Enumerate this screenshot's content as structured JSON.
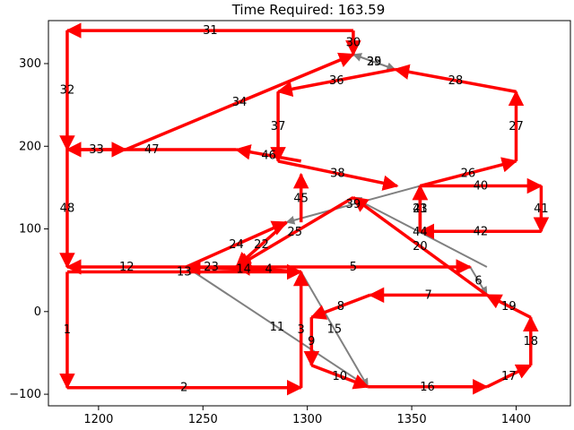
{
  "chart_data": {
    "type": "line",
    "title": "Time Required: 163.59",
    "xlabel": "",
    "ylabel": "",
    "xlim": [
      1176,
      1426
    ],
    "ylim": [
      -114,
      352
    ],
    "xticks": [
      1200,
      1250,
      1300,
      1350,
      1400
    ],
    "yticks": [
      -100,
      0,
      100,
      200,
      300
    ],
    "grid": false,
    "colors": {
      "route": "#ff0000",
      "transit": "#808080"
    },
    "edges": [
      {
        "label": "1",
        "from": [
          1185,
          48
        ],
        "to": [
          1185,
          -92
        ],
        "kind": "route"
      },
      {
        "label": "2",
        "from": [
          1185,
          -92
        ],
        "to": [
          1297,
          -92
        ],
        "kind": "route"
      },
      {
        "label": "3",
        "from": [
          1297,
          -92
        ],
        "to": [
          1297,
          48
        ],
        "kind": "route"
      },
      {
        "label": "4",
        "from": [
          1297,
          48
        ],
        "to": [
          1266,
          54
        ],
        "kind": "route"
      },
      {
        "label": "5",
        "from": [
          1266,
          54
        ],
        "to": [
          1378,
          54
        ],
        "kind": "route"
      },
      {
        "label": "6",
        "from": [
          1378,
          54
        ],
        "to": [
          1386,
          20
        ],
        "kind": "transit"
      },
      {
        "label": "7",
        "from": [
          1386,
          20
        ],
        "to": [
          1330,
          20
        ],
        "kind": "route"
      },
      {
        "label": "8",
        "from": [
          1330,
          20
        ],
        "to": [
          1302,
          -7
        ],
        "kind": "route"
      },
      {
        "label": "9",
        "from": [
          1302,
          -7
        ],
        "to": [
          1302,
          -65
        ],
        "kind": "route"
      },
      {
        "label": "10",
        "from": [
          1302,
          -65
        ],
        "to": [
          1329,
          -91
        ],
        "kind": "route"
      },
      {
        "label": "11",
        "from": [
          1329,
          -91
        ],
        "to": [
          1242,
          54
        ],
        "kind": "transit"
      },
      {
        "label": "12",
        "from": [
          1242,
          54
        ],
        "to": [
          1185,
          54
        ],
        "kind": "route"
      },
      {
        "label": "13",
        "from": [
          1185,
          48
        ],
        "to": [
          1297,
          48
        ],
        "kind": "route"
      },
      {
        "label": "14",
        "from": [
          1297,
          48
        ],
        "to": [
          1242,
          54
        ],
        "kind": "route"
      },
      {
        "label": "15",
        "from": [
          1297,
          48
        ],
        "to": [
          1329,
          -91
        ],
        "kind": "transit"
      },
      {
        "label": "16",
        "from": [
          1329,
          -91
        ],
        "to": [
          1386,
          -91
        ],
        "kind": "route"
      },
      {
        "label": "17",
        "from": [
          1386,
          -91
        ],
        "to": [
          1407,
          -65
        ],
        "kind": "route"
      },
      {
        "label": "18",
        "from": [
          1407,
          -65
        ],
        "to": [
          1407,
          -7
        ],
        "kind": "route"
      },
      {
        "label": "19",
        "from": [
          1407,
          -7
        ],
        "to": [
          1386,
          20
        ],
        "kind": "route"
      },
      {
        "label": "20",
        "from": [
          1386,
          20
        ],
        "to": [
          1322,
          138
        ],
        "kind": "route"
      },
      {
        "label": "21",
        "from": [
          1354,
          97
        ],
        "to": [
          1354,
          152
        ],
        "kind": "route"
      },
      {
        "label": "22",
        "from": [
          1290,
          108
        ],
        "to": [
          1266,
          54
        ],
        "kind": "route"
      },
      {
        "label": "23",
        "from": [
          1266,
          54
        ],
        "to": [
          1242,
          54
        ],
        "kind": "route"
      },
      {
        "label": "24",
        "from": [
          1242,
          54
        ],
        "to": [
          1290,
          108
        ],
        "kind": "route"
      },
      {
        "label": "25",
        "from": [
          1322,
          138
        ],
        "to": [
          1266,
          54
        ],
        "kind": "route"
      },
      {
        "label": "26",
        "from": [
          1354,
          152
        ],
        "to": [
          1400,
          182
        ],
        "kind": "route"
      },
      {
        "label": "27",
        "from": [
          1400,
          182
        ],
        "to": [
          1400,
          266
        ],
        "kind": "route"
      },
      {
        "label": "28",
        "from": [
          1400,
          266
        ],
        "to": [
          1342,
          293
        ],
        "kind": "route"
      },
      {
        "label": "29",
        "from": [
          1342,
          293
        ],
        "to": [
          1322,
          311
        ],
        "kind": "transit"
      },
      {
        "label": "30",
        "from": [
          1322,
          340
        ],
        "to": [
          1322,
          311
        ],
        "kind": "route"
      },
      {
        "label": "31",
        "from": [
          1322,
          340
        ],
        "to": [
          1185,
          340
        ],
        "kind": "route"
      },
      {
        "label": "32",
        "from": [
          1185,
          340
        ],
        "to": [
          1185,
          196
        ],
        "kind": "route"
      },
      {
        "label": "33",
        "from": [
          1185,
          196
        ],
        "to": [
          1213,
          196
        ],
        "kind": "route"
      },
      {
        "label": "34",
        "from": [
          1213,
          196
        ],
        "to": [
          1322,
          311
        ],
        "kind": "route"
      },
      {
        "label": "35",
        "from": [
          1322,
          311
        ],
        "to": [
          1342,
          293
        ],
        "kind": "transit"
      },
      {
        "label": "36",
        "from": [
          1342,
          293
        ],
        "to": [
          1286,
          266
        ],
        "kind": "route"
      },
      {
        "label": "37",
        "from": [
          1286,
          266
        ],
        "to": [
          1286,
          182
        ],
        "kind": "route"
      },
      {
        "label": "38",
        "from": [
          1286,
          182
        ],
        "to": [
          1343,
          152
        ],
        "kind": "route"
      },
      {
        "label": "39",
        "from": [
          1354,
          152
        ],
        "to": [
          1290,
          108
        ],
        "kind": "transit"
      },
      {
        "label": "40",
        "from": [
          1354,
          152
        ],
        "to": [
          1412,
          152
        ],
        "kind": "route"
      },
      {
        "label": "41",
        "from": [
          1412,
          152
        ],
        "to": [
          1412,
          97
        ],
        "kind": "route"
      },
      {
        "label": "42",
        "from": [
          1412,
          97
        ],
        "to": [
          1354,
          97
        ],
        "kind": "route"
      },
      {
        "label": "43",
        "from": [
          1354,
          97
        ],
        "to": [
          1354,
          152
        ],
        "kind": "route"
      },
      {
        "label": "44",
        "from": [
          1386,
          54
        ],
        "to": [
          1322,
          138
        ],
        "kind": "transit"
      },
      {
        "label": "45",
        "from": [
          1297,
          108
        ],
        "to": [
          1297,
          166
        ],
        "kind": "route"
      },
      {
        "label": "46",
        "from": [
          1297,
          182
        ],
        "to": [
          1266,
          196
        ],
        "kind": "route"
      },
      {
        "label": "47",
        "from": [
          1266,
          196
        ],
        "to": [
          1185,
          196
        ],
        "kind": "route"
      },
      {
        "label": "48",
        "from": [
          1185,
          196
        ],
        "to": [
          1185,
          54
        ],
        "kind": "route"
      }
    ]
  }
}
